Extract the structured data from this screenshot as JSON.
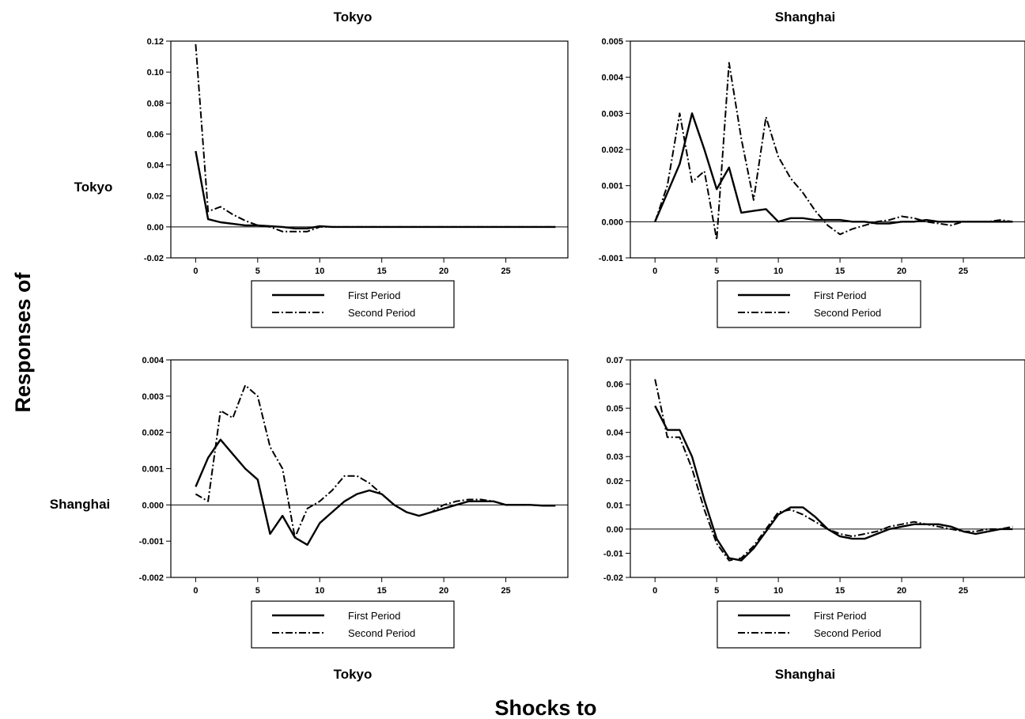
{
  "figure": {
    "y_label": "Responses of",
    "x_label": "Shocks to",
    "column_titles": [
      "Tokyo",
      "Shanghai"
    ],
    "bottom_titles": [
      "Tokyo",
      "Shanghai"
    ],
    "row_labels": [
      "Tokyo",
      "Shanghai"
    ]
  },
  "chart_data": [
    {
      "type": "line",
      "response_of": "Tokyo",
      "shock_to": "Tokyo",
      "xlim": [
        -2,
        30
      ],
      "ylim": [
        -0.02,
        0.12
      ],
      "xticks": [
        0,
        5,
        10,
        15,
        20,
        25
      ],
      "yticks": [
        -0.02,
        0.0,
        0.02,
        0.04,
        0.06,
        0.08,
        0.1,
        0.12
      ],
      "ytick_labels": [
        "-0.02",
        "0.00",
        "0.02",
        "0.04",
        "0.06",
        "0.08",
        "0.10",
        "0.12"
      ],
      "legend": [
        "First Period",
        "Second Period"
      ],
      "series": [
        {
          "name": "First Period",
          "style": "solid",
          "x": [
            0,
            1,
            2,
            3,
            4,
            5,
            6,
            7,
            8,
            9,
            10,
            11,
            12,
            15,
            20,
            25,
            29
          ],
          "y": [
            0.049,
            0.005,
            0.003,
            0.002,
            0.001,
            0.001,
            0.0005,
            0.0,
            -0.001,
            -0.001,
            0.0005,
            0.0,
            0.0,
            0.0,
            0.0,
            0.0,
            0.0
          ]
        },
        {
          "name": "Second Period",
          "style": "dashdot",
          "x": [
            0,
            1,
            2,
            3,
            4,
            5,
            6,
            7,
            8,
            9,
            10,
            11,
            12,
            15,
            20,
            25,
            29
          ],
          "y": [
            0.118,
            0.01,
            0.013,
            0.008,
            0.004,
            0.001,
            0.0,
            -0.003,
            -0.003,
            -0.003,
            0.0,
            0.0,
            0.0,
            0.0,
            0.0,
            0.0,
            0.0
          ]
        }
      ]
    },
    {
      "type": "line",
      "response_of": "Tokyo",
      "shock_to": "Shanghai",
      "xlim": [
        -2,
        30
      ],
      "ylim": [
        -0.001,
        0.005
      ],
      "xticks": [
        0,
        5,
        10,
        15,
        20,
        25
      ],
      "yticks": [
        -0.001,
        0.0,
        0.001,
        0.002,
        0.003,
        0.004,
        0.005
      ],
      "ytick_labels": [
        "-0.001",
        "0.000",
        "0.001",
        "0.002",
        "0.003",
        "0.004",
        "0.005"
      ],
      "legend": [
        "First Period",
        "Second Period"
      ],
      "series": [
        {
          "name": "First Period",
          "style": "solid",
          "x": [
            0,
            1,
            2,
            3,
            4,
            5,
            6,
            7,
            8,
            9,
            10,
            11,
            12,
            13,
            14,
            15,
            16,
            17,
            18,
            19,
            20,
            21,
            22,
            23,
            24,
            25,
            26,
            27,
            28,
            29
          ],
          "y": [
            0.0,
            0.0008,
            0.0016,
            0.003,
            0.002,
            0.0009,
            0.0015,
            0.00025,
            0.0003,
            0.00035,
            0.0,
            0.0001,
            0.0001,
            5e-05,
            5e-05,
            5e-05,
            0.0,
            0.0,
            -5e-05,
            -5e-05,
            0.0,
            0.0,
            5e-05,
            0.0,
            0.0,
            0.0,
            0.0,
            0.0,
            0.0,
            0.0
          ]
        },
        {
          "name": "Second Period",
          "style": "dashdot",
          "x": [
            0,
            1,
            2,
            3,
            4,
            5,
            6,
            7,
            8,
            9,
            10,
            11,
            12,
            13,
            14,
            15,
            16,
            17,
            18,
            19,
            20,
            21,
            22,
            23,
            24,
            25,
            26,
            27,
            28,
            29
          ],
          "y": [
            0.0,
            0.001,
            0.003,
            0.0011,
            0.0014,
            -0.0005,
            0.0044,
            0.0023,
            0.0006,
            0.0029,
            0.0018,
            0.0012,
            0.0008,
            0.0003,
            -0.0001,
            -0.00035,
            -0.0002,
            -0.0001,
            0.0,
            5e-05,
            0.00015,
            0.0001,
            0.0,
            -5e-05,
            -0.0001,
            0.0,
            0.0,
            0.0,
            5e-05,
            0.0
          ]
        }
      ]
    },
    {
      "type": "line",
      "response_of": "Shanghai",
      "shock_to": "Tokyo",
      "xlim": [
        -2,
        30
      ],
      "ylim": [
        -0.002,
        0.004
      ],
      "xticks": [
        0,
        5,
        10,
        15,
        20,
        25
      ],
      "yticks": [
        -0.002,
        -0.001,
        0.0,
        0.001,
        0.002,
        0.003,
        0.004
      ],
      "ytick_labels": [
        "-0.002",
        "-0.001",
        "0.000",
        "0.001",
        "0.002",
        "0.003",
        "0.004"
      ],
      "legend": [
        "First Period",
        "Second Period"
      ],
      "series": [
        {
          "name": "First Period",
          "style": "solid",
          "x": [
            0,
            1,
            2,
            3,
            4,
            5,
            6,
            7,
            8,
            9,
            10,
            11,
            12,
            13,
            14,
            15,
            16,
            17,
            18,
            19,
            20,
            21,
            22,
            23,
            24,
            25,
            26,
            27,
            28,
            29
          ],
          "y": [
            0.0005,
            0.0013,
            0.0018,
            0.0014,
            0.001,
            0.0007,
            -0.0008,
            -0.0003,
            -0.0009,
            -0.0011,
            -0.0005,
            -0.0002,
            0.0001,
            0.0003,
            0.0004,
            0.0003,
            0.0,
            -0.0002,
            -0.0003,
            -0.0002,
            -0.0001,
            0.0,
            0.0001,
            0.0001,
            0.0001,
            0.0,
            0.0,
            0.0,
            -2e-05,
            -2e-05
          ]
        },
        {
          "name": "Second Period",
          "style": "dashdot",
          "x": [
            0,
            1,
            2,
            3,
            4,
            5,
            6,
            7,
            8,
            9,
            10,
            11,
            12,
            13,
            14,
            15,
            16,
            17,
            18,
            19,
            20,
            21,
            22,
            23,
            24,
            25,
            26,
            27,
            28,
            29
          ],
          "y": [
            0.0003,
            0.0001,
            0.0026,
            0.0024,
            0.0033,
            0.003,
            0.0016,
            0.001,
            -0.0009,
            -0.0001,
            0.0001,
            0.0004,
            0.0008,
            0.0008,
            0.0006,
            0.0003,
            0.0,
            -0.0002,
            -0.0003,
            -0.0002,
            0.0,
            0.0001,
            0.00015,
            0.00015,
            0.0001,
            0.0,
            0.0,
            0.0,
            -2e-05,
            -2e-05
          ]
        }
      ]
    },
    {
      "type": "line",
      "response_of": "Shanghai",
      "shock_to": "Shanghai",
      "xlim": [
        -2,
        30
      ],
      "ylim": [
        -0.02,
        0.07
      ],
      "xticks": [
        0,
        5,
        10,
        15,
        20,
        25
      ],
      "yticks": [
        -0.02,
        -0.01,
        0.0,
        0.01,
        0.02,
        0.03,
        0.04,
        0.05,
        0.06,
        0.07
      ],
      "ytick_labels": [
        "-0.02",
        "-0.01",
        "0.00",
        "0.01",
        "0.02",
        "0.03",
        "0.04",
        "0.05",
        "0.06",
        "0.07"
      ],
      "legend": [
        "First Period",
        "Second Period"
      ],
      "series": [
        {
          "name": "First Period",
          "style": "solid",
          "x": [
            0,
            1,
            2,
            3,
            4,
            5,
            6,
            7,
            8,
            9,
            10,
            11,
            12,
            13,
            14,
            15,
            16,
            17,
            18,
            19,
            20,
            21,
            22,
            23,
            24,
            25,
            26,
            27,
            28,
            29
          ],
          "y": [
            0.051,
            0.041,
            0.041,
            0.03,
            0.012,
            -0.004,
            -0.012,
            -0.013,
            -0.008,
            -0.001,
            0.006,
            0.009,
            0.009,
            0.005,
            0.0,
            -0.003,
            -0.004,
            -0.004,
            -0.002,
            0.0,
            0.001,
            0.002,
            0.002,
            0.002,
            0.001,
            -0.001,
            -0.002,
            -0.001,
            0.0,
            0.0
          ]
        },
        {
          "name": "Second Period",
          "style": "dashdot",
          "x": [
            0,
            1,
            2,
            3,
            4,
            5,
            6,
            7,
            8,
            9,
            10,
            11,
            12,
            13,
            14,
            15,
            16,
            17,
            18,
            19,
            20,
            21,
            22,
            23,
            24,
            25,
            26,
            27,
            28,
            29
          ],
          "y": [
            0.062,
            0.038,
            0.038,
            0.025,
            0.008,
            -0.006,
            -0.013,
            -0.012,
            -0.007,
            0.0,
            0.007,
            0.008,
            0.006,
            0.003,
            0.0,
            -0.002,
            -0.003,
            -0.002,
            -0.001,
            0.001,
            0.002,
            0.003,
            0.002,
            0.001,
            0.0,
            -0.001,
            -0.001,
            0.0,
            0.0,
            0.001
          ]
        }
      ]
    }
  ]
}
